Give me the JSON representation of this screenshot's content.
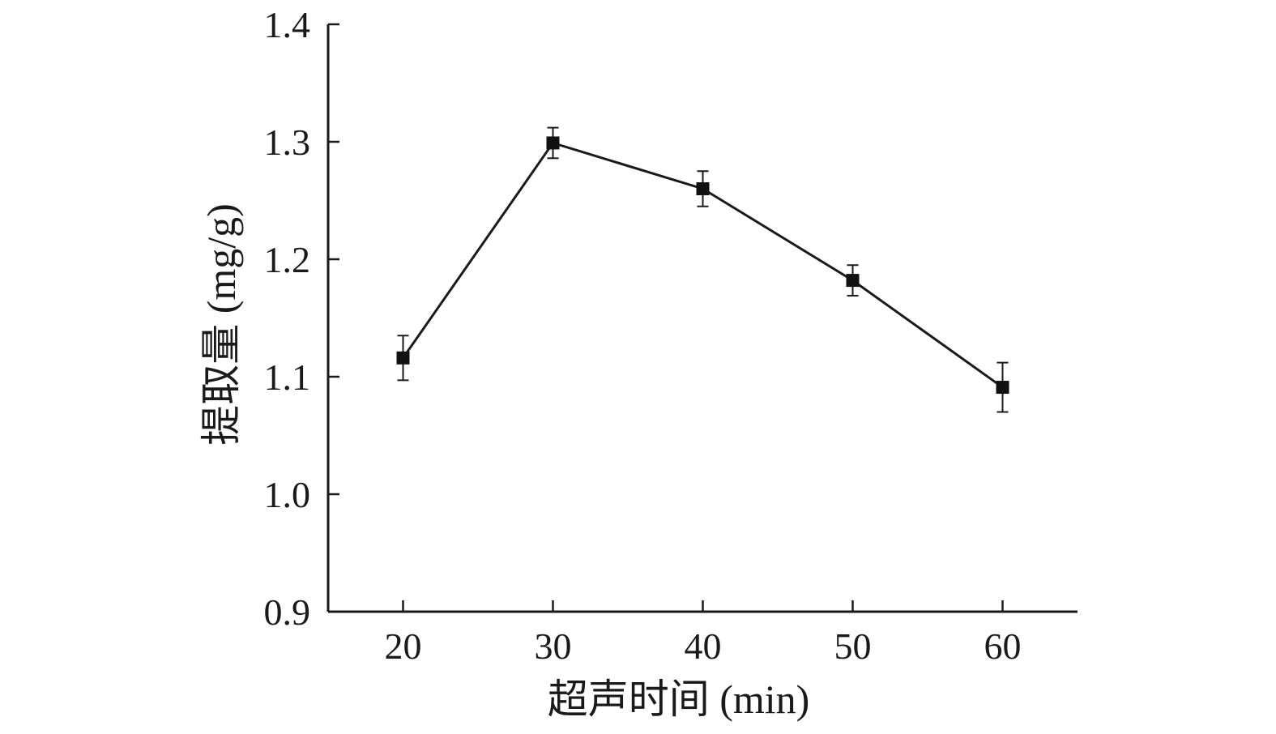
{
  "chart_data": {
    "type": "line",
    "xlabel": "超声时间 (min)",
    "ylabel": "提取量 (mg/g)",
    "x": [
      20,
      30,
      40,
      50,
      60
    ],
    "x_ticks": [
      "20",
      "30",
      "40",
      "50",
      "60"
    ],
    "xlim": [
      15,
      65
    ],
    "ylim": [
      0.9,
      1.4
    ],
    "y_ticks": [
      "0.9",
      "1.0",
      "1.1",
      "1.2",
      "1.3",
      "1.4"
    ],
    "grid": false,
    "series": [
      {
        "values": [
          1.116,
          1.299,
          1.26,
          1.182,
          1.091
        ],
        "error": [
          0.019,
          0.013,
          0.015,
          0.013,
          0.021
        ],
        "marker": "square",
        "color": "#111111"
      }
    ]
  }
}
